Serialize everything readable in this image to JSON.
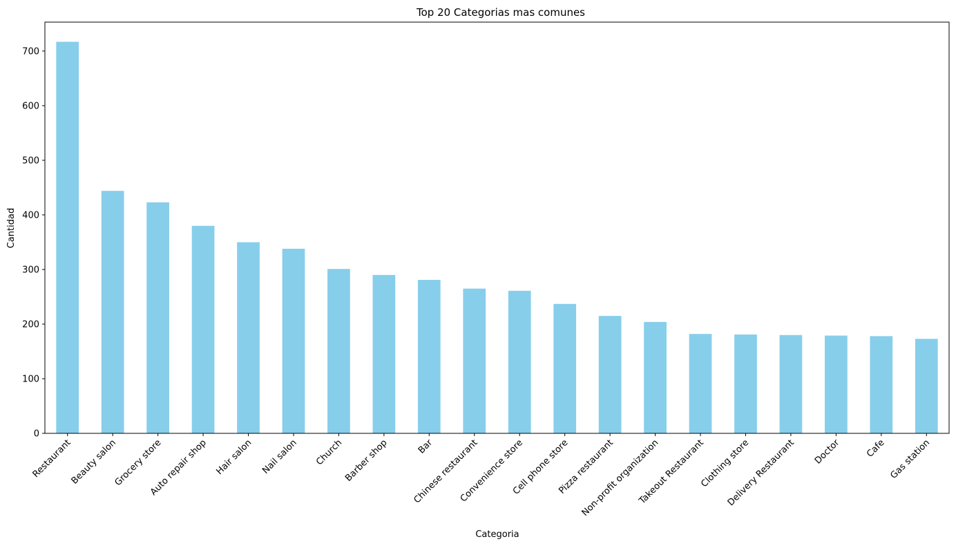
{
  "chart_data": {
    "type": "bar",
    "title": "Top 20 Categorias mas comunes",
    "xlabel": "Categoria",
    "ylabel": "Cantidad",
    "ylim": [
      0,
      753
    ],
    "yticks": [
      "0",
      "100",
      "200",
      "300",
      "400",
      "500",
      "600",
      "700"
    ],
    "grid": false,
    "bar_color": "#87CEEB",
    "categories": [
      "Restaurant",
      "Beauty salon",
      "Grocery store",
      "Auto repair shop",
      "Hair salon",
      "Nail salon",
      "Church",
      "Barber shop",
      "Bar",
      "Chinese restaurant",
      "Convenience store",
      "Cell phone store",
      "Pizza restaurant",
      "Non-profit organization",
      "Takeout Restaurant",
      "Clothing store",
      "Delivery Restaurant",
      "Doctor",
      "Cafe",
      "Gas station"
    ],
    "values": [
      717,
      444,
      423,
      380,
      350,
      338,
      301,
      290,
      281,
      265,
      261,
      237,
      215,
      204,
      182,
      181,
      180,
      179,
      178,
      173
    ]
  }
}
